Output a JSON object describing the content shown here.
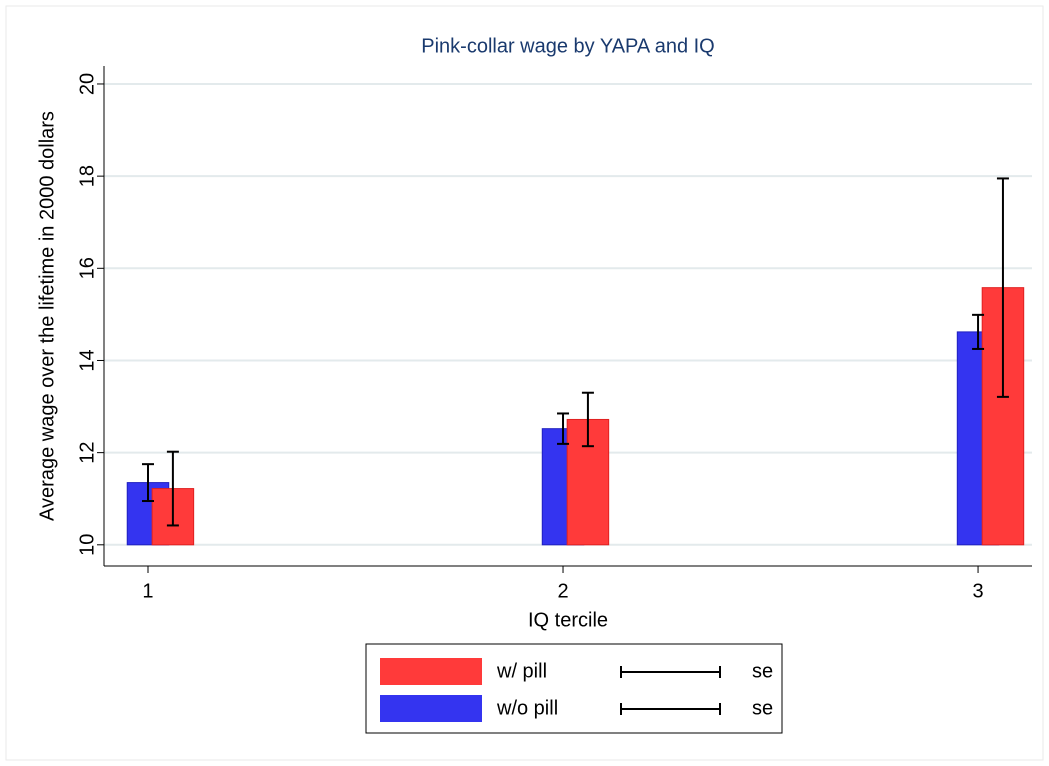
{
  "chart_data": {
    "type": "bar",
    "title": "Pink-collar wage by YAPA and IQ",
    "x_label": "IQ tercile",
    "y_label": "Average wage over the lifetime in 2000 dollars",
    "x": [
      1,
      2,
      3
    ],
    "xlim": [
      0.894,
      3.13
    ],
    "xticks": [
      1,
      2,
      3
    ],
    "ylim": [
      9.54,
      20.39
    ],
    "yticks": [
      10,
      12,
      14,
      16,
      18,
      20
    ],
    "bar_base": 10,
    "grid": true,
    "series": [
      {
        "name": "w/ pill",
        "color": "#ff3a3a",
        "offset": 0.06,
        "values": [
          11.22,
          12.72,
          15.58
        ],
        "errors": [
          0.8,
          0.58,
          2.37
        ],
        "error_label": "se"
      },
      {
        "name": "w/o pill",
        "color": "#3434f0",
        "offset": 0,
        "values": [
          11.35,
          12.52,
          14.62
        ],
        "errors": [
          0.4,
          0.33,
          0.37
        ],
        "error_label": "se"
      }
    ]
  }
}
